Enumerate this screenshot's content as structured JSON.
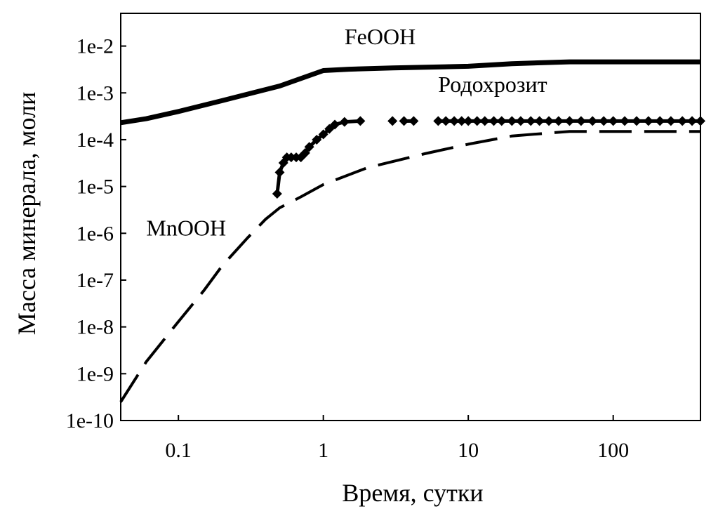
{
  "chart_data": {
    "type": "line",
    "xlabel": "Время, сутки",
    "ylabel": "Масса минерала, моли",
    "xscale": "log",
    "yscale": "log",
    "xlim": [
      0.04,
      400
    ],
    "ylim": [
      1e-10,
      0.05
    ],
    "grid": false,
    "legend": "none",
    "x_ticks": [
      {
        "value": 0.1,
        "label": "0.1"
      },
      {
        "value": 1,
        "label": "1"
      },
      {
        "value": 10,
        "label": "10"
      },
      {
        "value": 100,
        "label": "100"
      }
    ],
    "y_ticks": [
      {
        "value": 1e-10,
        "label": "1e-10"
      },
      {
        "value": 1e-09,
        "label": "1e-9"
      },
      {
        "value": 1e-08,
        "label": "1e-8"
      },
      {
        "value": 1e-07,
        "label": "1e-7"
      },
      {
        "value": 1e-06,
        "label": "1e-6"
      },
      {
        "value": 1e-05,
        "label": "1e-5"
      },
      {
        "value": 0.0001,
        "label": "1e-4"
      },
      {
        "value": 0.001,
        "label": "1e-3"
      },
      {
        "value": 0.01,
        "label": "1e-2"
      }
    ],
    "series": [
      {
        "key": "feooh",
        "style": "solid-thick",
        "points": [
          [
            0.04,
            0.00023
          ],
          [
            0.06,
            0.00028
          ],
          [
            0.1,
            0.0004
          ],
          [
            0.2,
            0.00068
          ],
          [
            0.5,
            0.0014
          ],
          [
            1.0,
            0.003
          ],
          [
            1.5,
            0.0032
          ],
          [
            3,
            0.0034
          ],
          [
            10,
            0.0037
          ],
          [
            20,
            0.0042
          ],
          [
            50,
            0.0046
          ],
          [
            100,
            0.0046
          ],
          [
            400,
            0.0046
          ]
        ]
      },
      {
        "key": "rhodochrosite",
        "style": "solid-markers",
        "marker": "diamond",
        "points": [
          [
            0.48,
            7e-06
          ],
          [
            0.5,
            2e-05
          ],
          [
            0.53,
            3.2e-05
          ],
          [
            0.56,
            4.2e-05
          ],
          [
            0.6,
            4.2e-05
          ],
          [
            0.65,
            4.2e-05
          ],
          [
            0.7,
            4.2e-05
          ],
          [
            0.75,
            5.2e-05
          ],
          [
            0.8,
            7e-05
          ],
          [
            0.9,
            0.0001
          ],
          [
            1.0,
            0.00013
          ],
          [
            1.1,
            0.00017
          ],
          [
            1.2,
            0.00021
          ],
          [
            1.4,
            0.00024
          ],
          [
            1.8,
            0.00025
          ],
          [
            3,
            0.00025
          ],
          [
            3.6,
            0.00025
          ],
          [
            4.2,
            0.00025
          ],
          [
            6.2,
            0.00025
          ],
          [
            7,
            0.00025
          ],
          [
            8,
            0.00025
          ],
          [
            9,
            0.00025
          ],
          [
            10,
            0.00025
          ],
          [
            11.5,
            0.00025
          ],
          [
            13,
            0.00025
          ],
          [
            15,
            0.00025
          ],
          [
            17,
            0.00025
          ],
          [
            20,
            0.00025
          ],
          [
            23,
            0.00025
          ],
          [
            27,
            0.00025
          ],
          [
            31,
            0.00025
          ],
          [
            36,
            0.00025
          ],
          [
            42,
            0.00025
          ],
          [
            50,
            0.00025
          ],
          [
            60,
            0.00025
          ],
          [
            72,
            0.00025
          ],
          [
            86,
            0.00025
          ],
          [
            100,
            0.00025
          ],
          [
            120,
            0.00025
          ],
          [
            145,
            0.00025
          ],
          [
            175,
            0.00025
          ],
          [
            210,
            0.00025
          ],
          [
            250,
            0.00025
          ],
          [
            300,
            0.00025
          ],
          [
            350,
            0.00025
          ],
          [
            400,
            0.00025
          ]
        ],
        "gaps": [
          [
            1.9,
            3.4
          ],
          [
            4.3,
            6.1
          ]
        ]
      },
      {
        "key": "mnooh",
        "style": "dashed",
        "points": [
          [
            0.04,
            2.5e-10
          ],
          [
            0.06,
            1.8e-09
          ],
          [
            0.1,
            1.3e-08
          ],
          [
            0.15,
            6e-08
          ],
          [
            0.2,
            2e-07
          ],
          [
            0.3,
            8e-07
          ],
          [
            0.4,
            2e-06
          ],
          [
            0.5,
            3.5e-06
          ],
          [
            0.7,
            6e-06
          ],
          [
            1.0,
            1.1e-05
          ],
          [
            2,
            2.5e-05
          ],
          [
            5,
            5e-05
          ],
          [
            10,
            8e-05
          ],
          [
            20,
            0.00012
          ],
          [
            50,
            0.00015
          ],
          [
            100,
            0.00015
          ],
          [
            400,
            0.00015
          ]
        ]
      }
    ],
    "annotations": [
      {
        "key": "feooh",
        "text": "FeOOH",
        "x": 1.4,
        "y": 0.011
      },
      {
        "key": "rhodochrosite",
        "text": "Родохрозит",
        "x": 6.2,
        "y": 0.00105
      },
      {
        "key": "mnooh",
        "text": "MnOOH",
        "x": 0.06,
        "y": 9e-07
      }
    ]
  }
}
